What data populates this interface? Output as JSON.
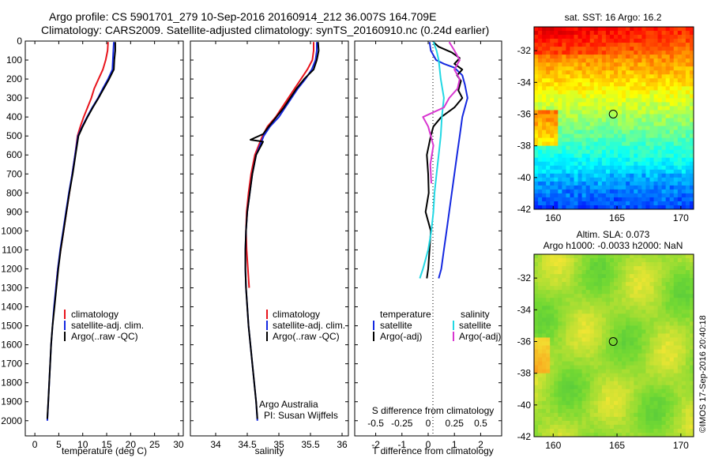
{
  "header": {
    "line1": "Argo profile: CS 5901701_279 10-Sep-2016 20160914_212 36.007S 164.709E",
    "line2": "Climatology: CARS2009. Satellite-adjusted climatology: synTS_20160910.nc (0.24d earlier)"
  },
  "credit": "©IMOS 17-Sep-2016 20:40:18",
  "colors": {
    "climatology": "#e8141c",
    "satellite": "#1428e0",
    "argo": "#000000",
    "sal_sat": "#22d8e4",
    "sal_argo": "#d836d0"
  },
  "chart_data": [
    {
      "type": "line",
      "name": "temperature",
      "xlabel": "temperature (deg C)",
      "ylabel": "",
      "xlim": [
        -2,
        31
      ],
      "ylim": [
        0,
        2080
      ],
      "y_reversed": true,
      "xticks": [
        0,
        5,
        10,
        15,
        20,
        25,
        30
      ],
      "yticks": [
        0,
        100,
        200,
        300,
        400,
        500,
        600,
        700,
        800,
        900,
        1000,
        1100,
        1200,
        1300,
        1400,
        1500,
        1600,
        1700,
        1800,
        1900,
        2000
      ],
      "legend": [
        "climatology",
        "satellite-adj. clim.",
        "Argo(..raw -QC)"
      ],
      "series": [
        {
          "name": "climatology",
          "color_key": "climatology",
          "points": [
            [
              15.3,
              5
            ],
            [
              15.2,
              50
            ],
            [
              14.8,
              100
            ],
            [
              14.2,
              150
            ],
            [
              13.3,
              200
            ],
            [
              12.4,
              250
            ],
            [
              11.8,
              300
            ],
            [
              11.0,
              350
            ],
            [
              10.2,
              400
            ],
            [
              9.5,
              450
            ],
            [
              8.9,
              500
            ],
            [
              8.4,
              600
            ],
            [
              7.8,
              700
            ],
            [
              7.2,
              800
            ],
            [
              6.6,
              900
            ],
            [
              6.0,
              1000
            ],
            [
              5.4,
              1100
            ],
            [
              4.8,
              1200
            ],
            [
              4.4,
              1300
            ]
          ]
        },
        {
          "name": "satellite-adj. clim.",
          "color_key": "satellite",
          "points": [
            [
              16.5,
              5
            ],
            [
              16.4,
              50
            ],
            [
              16.3,
              100
            ],
            [
              16.2,
              150
            ],
            [
              15.3,
              200
            ],
            [
              14.2,
              250
            ],
            [
              13.2,
              300
            ],
            [
              12.0,
              350
            ],
            [
              10.9,
              400
            ],
            [
              9.9,
              450
            ],
            [
              9.0,
              500
            ],
            [
              8.4,
              600
            ],
            [
              7.8,
              700
            ],
            [
              7.1,
              800
            ],
            [
              6.5,
              900
            ],
            [
              5.9,
              1000
            ],
            [
              5.3,
              1100
            ],
            [
              4.8,
              1200
            ],
            [
              4.4,
              1300
            ],
            [
              4.0,
              1400
            ],
            [
              3.7,
              1500
            ],
            [
              3.4,
              1600
            ],
            [
              3.2,
              1700
            ],
            [
              3.0,
              1800
            ],
            [
              2.8,
              1900
            ],
            [
              2.6,
              2000
            ]
          ]
        },
        {
          "name": "Argo(..raw -QC)",
          "color_key": "argo",
          "points": [
            [
              16.8,
              5
            ],
            [
              16.8,
              50
            ],
            [
              16.6,
              100
            ],
            [
              16.5,
              150
            ],
            [
              15.5,
              200
            ],
            [
              14.4,
              250
            ],
            [
              13.3,
              300
            ],
            [
              12.1,
              350
            ],
            [
              11.0,
              400
            ],
            [
              10.0,
              450
            ],
            [
              9.1,
              500
            ],
            [
              8.5,
              600
            ],
            [
              7.9,
              700
            ],
            [
              7.2,
              800
            ],
            [
              6.6,
              900
            ],
            [
              6.0,
              1000
            ],
            [
              5.4,
              1100
            ],
            [
              4.9,
              1200
            ],
            [
              4.5,
              1300
            ],
            [
              4.1,
              1400
            ],
            [
              3.7,
              1500
            ],
            [
              3.4,
              1600
            ],
            [
              3.2,
              1700
            ],
            [
              3.0,
              1800
            ],
            [
              2.8,
              1900
            ],
            [
              2.6,
              1990
            ]
          ]
        }
      ]
    },
    {
      "type": "line",
      "name": "salinity",
      "xlabel": "salinity",
      "ylabel": "",
      "xlim": [
        33.6,
        36.1
      ],
      "ylim": [
        0,
        2080
      ],
      "y_reversed": true,
      "xticks": [
        34,
        34.5,
        35,
        35.5,
        36
      ],
      "xticklabels": [
        "34",
        "34.5",
        "35",
        "35.5",
        "36"
      ],
      "legend": [
        "climatology",
        "satellite-adj. clim.",
        "Argo(..raw -QC)"
      ],
      "annotation": [
        "Argo Australia",
        "PI: Susan Wijffels"
      ],
      "series": [
        {
          "name": "climatology",
          "color_key": "climatology",
          "points": [
            [
              35.55,
              5
            ],
            [
              35.55,
              50
            ],
            [
              35.53,
              100
            ],
            [
              35.45,
              150
            ],
            [
              35.35,
              200
            ],
            [
              35.25,
              250
            ],
            [
              35.15,
              300
            ],
            [
              35.05,
              350
            ],
            [
              34.95,
              400
            ],
            [
              34.82,
              450
            ],
            [
              34.74,
              500
            ],
            [
              34.62,
              600
            ],
            [
              34.56,
              700
            ],
            [
              34.52,
              800
            ],
            [
              34.49,
              900
            ],
            [
              34.48,
              1000
            ],
            [
              34.49,
              1100
            ],
            [
              34.51,
              1200
            ],
            [
              34.53,
              1300
            ]
          ]
        },
        {
          "name": "satellite-adj. clim.",
          "color_key": "satellite",
          "points": [
            [
              35.6,
              5
            ],
            [
              35.6,
              50
            ],
            [
              35.58,
              100
            ],
            [
              35.52,
              150
            ],
            [
              35.42,
              200
            ],
            [
              35.3,
              250
            ],
            [
              35.2,
              300
            ],
            [
              35.1,
              350
            ],
            [
              35.0,
              400
            ],
            [
              34.86,
              450
            ],
            [
              34.76,
              500
            ],
            [
              34.64,
              600
            ],
            [
              34.58,
              700
            ],
            [
              34.54,
              800
            ],
            [
              34.5,
              900
            ],
            [
              34.48,
              1000
            ],
            [
              34.47,
              1100
            ],
            [
              34.47,
              1200
            ],
            [
              34.48,
              1300
            ],
            [
              34.5,
              1400
            ],
            [
              34.52,
              1500
            ],
            [
              34.55,
              1600
            ],
            [
              34.58,
              1700
            ],
            [
              34.61,
              1800
            ],
            [
              34.64,
              1900
            ],
            [
              34.66,
              2000
            ]
          ]
        },
        {
          "name": "Argo(..raw -QC)",
          "color_key": "argo",
          "points": [
            [
              35.62,
              5
            ],
            [
              35.63,
              50
            ],
            [
              35.6,
              100
            ],
            [
              35.55,
              150
            ],
            [
              35.4,
              200
            ],
            [
              35.28,
              250
            ],
            [
              35.18,
              300
            ],
            [
              35.08,
              350
            ],
            [
              34.96,
              400
            ],
            [
              34.84,
              450
            ],
            [
              34.75,
              490
            ],
            [
              34.55,
              520
            ],
            [
              34.75,
              530
            ],
            [
              34.72,
              550
            ],
            [
              34.64,
              600
            ],
            [
              34.58,
              700
            ],
            [
              34.54,
              800
            ],
            [
              34.5,
              900
            ],
            [
              34.48,
              1000
            ],
            [
              34.47,
              1100
            ],
            [
              34.47,
              1200
            ],
            [
              34.48,
              1300
            ],
            [
              34.5,
              1400
            ],
            [
              34.52,
              1500
            ],
            [
              34.55,
              1600
            ],
            [
              34.58,
              1700
            ],
            [
              34.61,
              1800
            ],
            [
              34.64,
              1900
            ],
            [
              34.66,
              1990
            ]
          ]
        }
      ]
    },
    {
      "type": "line",
      "name": "differences",
      "xlabel": "T difference from climatology",
      "xlabel_top": "S difference from climatology",
      "xlim": [
        -2.8,
        2.8
      ],
      "ylim": [
        0,
        2080
      ],
      "y_reversed": true,
      "xticks": [
        -2,
        -1,
        0,
        1,
        2
      ],
      "top_ticks": [
        -0.5,
        -0.25,
        0,
        0.25,
        0.5
      ],
      "top_ticklabels": [
        "-0.5",
        "-0.25",
        "0",
        "0.25",
        "0.5"
      ],
      "legend_headers": [
        "temperature",
        "salinity"
      ],
      "legend": [
        "satellite",
        "Argo(-adj)",
        "satellite",
        "Argo(-adj)"
      ],
      "series": [
        {
          "name": "T satellite",
          "color_key": "satellite",
          "points": [
            [
              0.05,
              5
            ],
            [
              0.1,
              50
            ],
            [
              0.3,
              100
            ],
            [
              0.6,
              120
            ],
            [
              1.0,
              140
            ],
            [
              1.3,
              180
            ],
            [
              1.4,
              230
            ],
            [
              1.5,
              300
            ],
            [
              1.3,
              400
            ],
            [
              1.2,
              500
            ],
            [
              1.1,
              600
            ],
            [
              1.0,
              700
            ],
            [
              0.9,
              800
            ],
            [
              0.8,
              900
            ],
            [
              0.7,
              1000
            ],
            [
              0.6,
              1100
            ],
            [
              0.5,
              1200
            ],
            [
              0.4,
              1250
            ]
          ]
        },
        {
          "name": "T Argo(-adj)",
          "color_key": "argo",
          "points": [
            [
              0.2,
              5
            ],
            [
              0.4,
              30
            ],
            [
              0.9,
              60
            ],
            [
              1.2,
              90
            ],
            [
              1.0,
              120
            ],
            [
              1.3,
              150
            ],
            [
              1.1,
              180
            ],
            [
              1.25,
              210
            ],
            [
              1.15,
              260
            ],
            [
              1.3,
              300
            ],
            [
              1.0,
              350
            ],
            [
              0.5,
              400
            ],
            [
              0.2,
              450
            ],
            [
              0.1,
              500
            ],
            [
              -0.05,
              600
            ],
            [
              0.0,
              700
            ],
            [
              0.02,
              800
            ],
            [
              -0.1,
              900
            ],
            [
              0.1,
              1000
            ],
            [
              0.05,
              1100
            ],
            [
              0.0,
              1200
            ],
            [
              -0.05,
              1250
            ]
          ]
        },
        {
          "name": "S satellite",
          "color_key": "sal_sat",
          "points": [
            [
              0.05,
              5
            ],
            [
              0.08,
              50
            ],
            [
              0.1,
              100
            ],
            [
              0.12,
              200
            ],
            [
              0.15,
              300
            ],
            [
              0.13,
              400
            ],
            [
              0.12,
              500
            ],
            [
              0.1,
              600
            ],
            [
              0.08,
              700
            ],
            [
              0.06,
              800
            ],
            [
              0.05,
              900
            ],
            [
              0.03,
              1000
            ],
            [
              0.0,
              1100
            ],
            [
              -0.05,
              1200
            ],
            [
              -0.08,
              1250
            ]
          ]
        },
        {
          "name": "S Argo(-adj)",
          "color_key": "sal_argo",
          "points": [
            [
              0.2,
              5
            ],
            [
              0.25,
              50
            ],
            [
              0.3,
              100
            ],
            [
              0.25,
              150
            ],
            [
              0.3,
              200
            ],
            [
              0.28,
              250
            ],
            [
              0.2,
              300
            ],
            [
              0.15,
              350
            ],
            [
              -0.05,
              400
            ],
            [
              0.0,
              450
            ],
            [
              0.05,
              550
            ],
            [
              0.02,
              650
            ],
            [
              0.03,
              750
            ]
          ]
        }
      ]
    },
    {
      "type": "heatmap",
      "name": "sst-map",
      "title": "sat. SST: 16 Argo: 16.2",
      "xticks": [
        160,
        165,
        170
      ],
      "yticks": [
        -32,
        -34,
        -36,
        -38,
        -40,
        -42
      ],
      "xlim": [
        158.5,
        171
      ],
      "ylim": [
        -42,
        -30.5
      ],
      "marker": [
        164.7,
        -36.0
      ],
      "colormap": "jet"
    },
    {
      "type": "heatmap",
      "name": "sla-map",
      "title": "Altim. SLA: 0.073",
      "subtitle": "Argo h1000: -0.0033 h2000: NaN",
      "xticks": [
        160,
        165,
        170
      ],
      "yticks": [
        -32,
        -34,
        -36,
        -38,
        -40,
        -42
      ],
      "xlim": [
        158.5,
        171
      ],
      "ylim": [
        -42,
        -30.5
      ],
      "marker": [
        164.7,
        -36.0
      ],
      "colormap": "green-yellow"
    }
  ]
}
